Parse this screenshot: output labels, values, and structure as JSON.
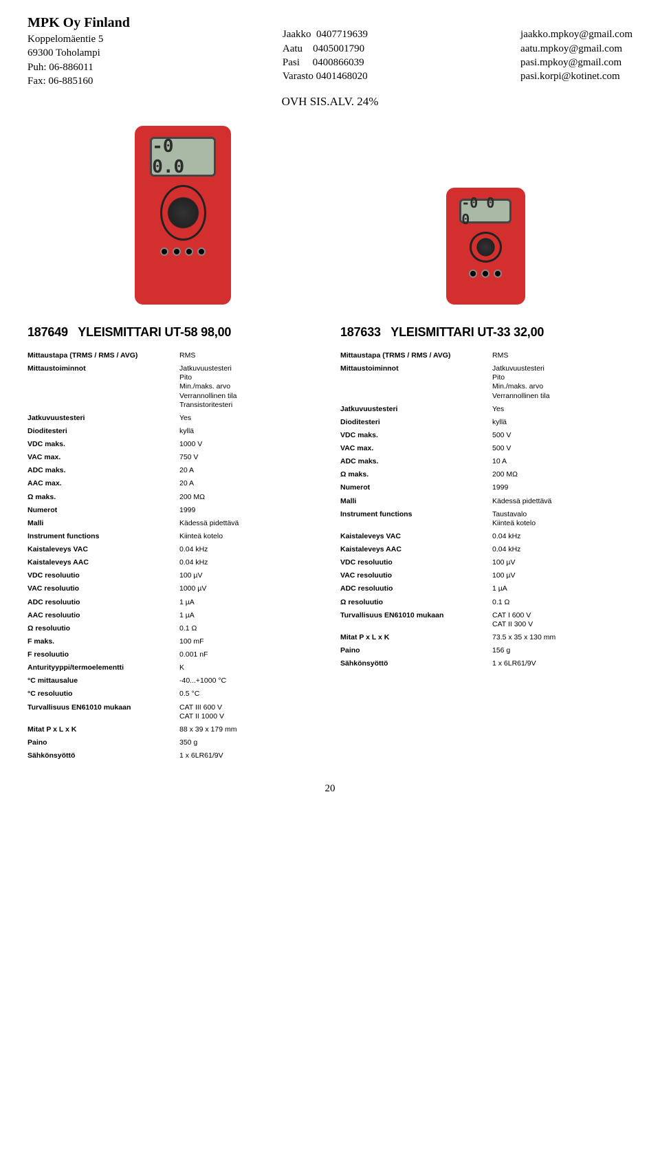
{
  "header": {
    "company": "MPK Oy Finland",
    "addr1": "Koppelomäentie 5",
    "addr2": "69300 Toholampi",
    "phone": "Puh: 06-886011",
    "fax": "Fax: 06-885160",
    "contacts": [
      {
        "name": "Jaakko",
        "num": "0407719639",
        "email": "jaakko.mpkoy@gmail.com"
      },
      {
        "name": "Aatu",
        "num": "0405001790",
        "email": "aatu.mpkoy@gmail.com"
      },
      {
        "name": "Pasi",
        "num": "0400866039",
        "email": "pasi.mpkoy@gmail.com"
      },
      {
        "name": "Varasto",
        "num": "0401468020",
        "email": "pasi.korpi@kotinet.com"
      }
    ],
    "ovh": "OVH SIS.ALV. 24%"
  },
  "screen1": "-0 0.0",
  "screen2": "-0 0 0",
  "product1": {
    "title_code": "187649",
    "title_name": "YLEISMITTARI  UT-58 98,00",
    "specs": [
      [
        "Mittaustapa (TRMS / RMS / AVG)",
        "RMS"
      ],
      [
        "Mittaustoiminnot",
        "Jatkuvuustesteri\nPito\nMin./maks. arvo\nVerrannollinen tila\nTransistoritesteri"
      ],
      [
        "Jatkuvuustesteri",
        "Yes"
      ],
      [
        "Dioditesteri",
        "kyllä"
      ],
      [
        "VDC maks.",
        "1000 V"
      ],
      [
        "VAC max.",
        "750 V"
      ],
      [
        "ADC maks.",
        "20 A"
      ],
      [
        "AAC max.",
        "20 A"
      ],
      [
        "Ω maks.",
        "200 MΩ"
      ],
      [
        "Numerot",
        "1999"
      ],
      [
        "Malli",
        "Kädessä pidettävä"
      ],
      [
        "Instrument functions",
        "Kiinteä kotelo"
      ],
      [
        "Kaistaleveys VAC",
        "0.04 kHz"
      ],
      [
        "Kaistaleveys AAC",
        "0.04 kHz"
      ],
      [
        "VDC resoluutio",
        "100 µV"
      ],
      [
        "VAC resoluutio",
        "1000 µV"
      ],
      [
        "ADC resoluutio",
        "1 µA"
      ],
      [
        "AAC resoluutio",
        "1 µA"
      ],
      [
        "Ω resoluutio",
        "0.1 Ω"
      ],
      [
        "F maks.",
        "100 mF"
      ],
      [
        "F resoluutio",
        "0.001 nF"
      ],
      [
        "Anturityyppi/termoelementti",
        "K"
      ],
      [
        "°C mittausalue",
        "-40...+1000 °C"
      ],
      [
        "°C resoluutio",
        "0.5 °C"
      ],
      [
        "Turvallisuus EN61010 mukaan",
        "CAT III 600 V\nCAT II 1000 V"
      ],
      [
        "Mitat P x L x K",
        "88 x 39 x 179 mm"
      ],
      [
        "Paino",
        "350 g"
      ],
      [
        "Sähkönsyöttö",
        "1 x 6LR61/9V"
      ]
    ]
  },
  "product2": {
    "title_code": "187633",
    "title_name": "YLEISMITTARI  UT-33 32,00",
    "specs": [
      [
        "Mittaustapa (TRMS / RMS / AVG)",
        "RMS"
      ],
      [
        "Mittaustoiminnot",
        "Jatkuvuustesteri\nPito\nMin./maks. arvo\nVerrannollinen tila"
      ],
      [
        "Jatkuvuustesteri",
        "Yes"
      ],
      [
        "Dioditesteri",
        "kyllä"
      ],
      [
        "VDC maks.",
        "500 V"
      ],
      [
        "VAC max.",
        "500 V"
      ],
      [
        "ADC maks.",
        "10 A"
      ],
      [
        "Ω maks.",
        "200 MΩ"
      ],
      [
        "Numerot",
        "1999"
      ],
      [
        "Malli",
        "Kädessä pidettävä"
      ],
      [
        "Instrument functions",
        "Taustavalo\nKiinteä kotelo"
      ],
      [
        "Kaistaleveys VAC",
        "0.04 kHz"
      ],
      [
        "Kaistaleveys AAC",
        "0.04 kHz"
      ],
      [
        "VDC resoluutio",
        "100 µV"
      ],
      [
        "VAC resoluutio",
        "100 µV"
      ],
      [
        "ADC resoluutio",
        "1 µA"
      ],
      [
        "Ω resoluutio",
        "0.1 Ω"
      ],
      [
        "Turvallisuus EN61010 mukaan",
        "CAT I 600 V\nCAT II 300 V"
      ],
      [
        "Mitat P x L x K",
        "73.5 x 35 x 130 mm"
      ],
      [
        "Paino",
        "156 g"
      ],
      [
        "Sähkönsyöttö",
        "1 x 6LR61/9V"
      ]
    ]
  },
  "page_num": "20"
}
